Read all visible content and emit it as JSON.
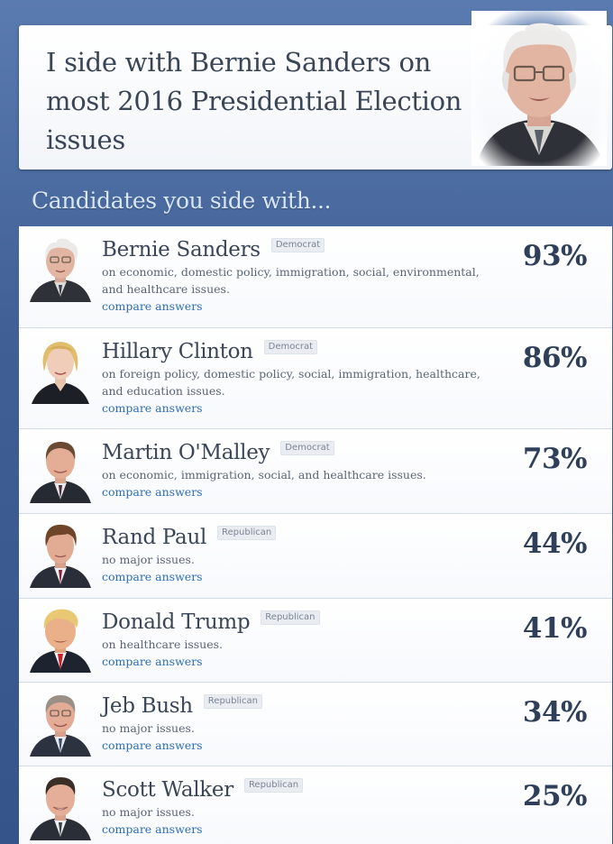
{
  "hero": {
    "title": "I side with Bernie Sanders on most 2016 Presidential Election issues",
    "portrait_icon": "bernie-sanders-portrait"
  },
  "section_heading": "Candidates you side with...",
  "candidates": [
    {
      "name": "Bernie Sanders",
      "party": "Democrat",
      "issues": "on economic, domestic policy, immigration, social, environmental, and healthcare issues.",
      "link": "compare answers",
      "percent": "93%",
      "tie_color": "#3a3f4a"
    },
    {
      "name": "Hillary Clinton",
      "party": "Democrat",
      "issues": "on foreign policy, domestic policy, social, immigration, healthcare, and education issues.",
      "link": "compare answers",
      "percent": "86%",
      "tie_color": "#1c1f26"
    },
    {
      "name": "Martin O'Malley",
      "party": "Democrat",
      "issues": "on economic, immigration, social, and healthcare issues.",
      "link": "compare answers",
      "percent": "73%",
      "tie_color": "#4a2f3a"
    },
    {
      "name": "Rand Paul",
      "party": "Republican",
      "issues": "no major issues.",
      "link": "compare answers",
      "percent": "44%",
      "tie_color": "#8a2030"
    },
    {
      "name": "Donald Trump",
      "party": "Republican",
      "issues": "on healthcare issues.",
      "link": "compare answers",
      "percent": "41%",
      "tie_color": "#c8202a"
    },
    {
      "name": "Jeb Bush",
      "party": "Republican",
      "issues": "no major issues.",
      "link": "compare answers",
      "percent": "34%",
      "tie_color": "#3a4a6a"
    },
    {
      "name": "Scott Walker",
      "party": "Republican",
      "issues": "no major issues.",
      "link": "compare answers",
      "percent": "25%",
      "tie_color": "#3a3f4a"
    }
  ]
}
